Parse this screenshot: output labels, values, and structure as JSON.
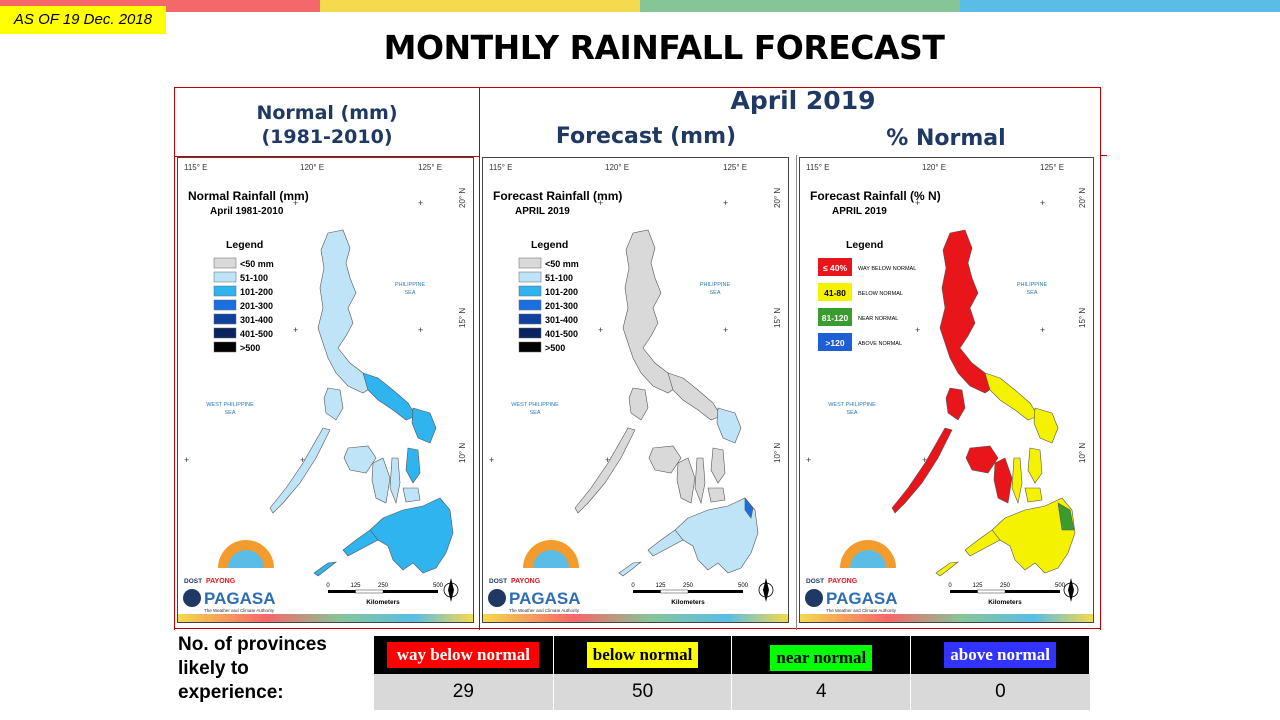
{
  "banner": {
    "as_of": "AS OF 19 Dec. 2018"
  },
  "title": "MONTHLY RAINFALL FORECAST",
  "colors": {
    "bar": [
      "#f4676a",
      "#f5d94e",
      "#86c598",
      "#5bbde6"
    ],
    "header_text": "#1f3864",
    "frame": "#c00000"
  },
  "headers": {
    "normal_line1": "Normal (mm)",
    "normal_line2": "(1981-2010)",
    "month": "April 2019",
    "forecast": "Forecast (mm)",
    "percent": "% Normal"
  },
  "maps": [
    {
      "id": "normal",
      "title": "Normal Rainfall (mm)",
      "subtitle": "April 1981-2010",
      "legend_title": "Legend",
      "legend": [
        {
          "label": "<50 mm",
          "color": "#d9d9d9"
        },
        {
          "label": "51-100",
          "color": "#bfe3f7"
        },
        {
          "label": "101-200",
          "color": "#2fb4ef"
        },
        {
          "label": "201-300",
          "color": "#1a6fe0"
        },
        {
          "label": "301-400",
          "color": "#10419e"
        },
        {
          "label": "401-500",
          "color": "#08235e"
        },
        {
          "label": ">500",
          "color": "#000000"
        }
      ],
      "lon_labels": [
        "115° E",
        "120° E",
        "125° E"
      ],
      "lat_labels": [
        "20° N",
        "15° N",
        "10° N"
      ],
      "sea_labels": [
        "PHILIPPINE SEA",
        "WEST PHILIPPINE SEA"
      ],
      "scale_label": "Kilometers",
      "scale_ticks": [
        "0",
        "125",
        "250",
        "500"
      ],
      "logo": {
        "dost": "DOST",
        "payong": "PAYONG",
        "pagasa": "PAGASA",
        "tagline": "The Weather and Climate Authority"
      }
    },
    {
      "id": "forecast",
      "title": "Forecast Rainfall (mm)",
      "subtitle": "APRIL 2019",
      "legend_title": "Legend",
      "legend": [
        {
          "label": "<50 mm",
          "color": "#d9d9d9"
        },
        {
          "label": "51-100",
          "color": "#bfe3f7"
        },
        {
          "label": "101-200",
          "color": "#2fb4ef"
        },
        {
          "label": "201-300",
          "color": "#1a6fe0"
        },
        {
          "label": "301-400",
          "color": "#10419e"
        },
        {
          "label": "401-500",
          "color": "#08235e"
        },
        {
          "label": ">500",
          "color": "#000000"
        }
      ],
      "lon_labels": [
        "115° E",
        "120° E",
        "125° E"
      ],
      "lat_labels": [
        "20° N",
        "15° N",
        "10° N"
      ],
      "sea_labels": [
        "PHILIPPINE SEA",
        "WEST PHILIPPINE SEA"
      ],
      "scale_label": "Kilometers",
      "scale_ticks": [
        "0",
        "125",
        "250",
        "500"
      ],
      "logo": {
        "dost": "DOST",
        "payong": "PAYONG",
        "pagasa": "PAGASA",
        "tagline": "The Weather and Climate Authority"
      }
    },
    {
      "id": "percent",
      "title": "Forecast Rainfall (% N)",
      "subtitle": "APRIL 2019",
      "legend_title": "Legend",
      "legend": [
        {
          "label": "WAY BELOW NORMAL",
          "swatch": "≤ 40%",
          "color": "#e8151b"
        },
        {
          "label": "BELOW NORMAL",
          "swatch": "41-80",
          "color": "#f5f200"
        },
        {
          "label": "NEAR NORMAL",
          "swatch": "81-120",
          "color": "#3a9c2e"
        },
        {
          "label": "ABOVE NORMAL",
          "swatch": ">120",
          "color": "#1f5fd6"
        }
      ],
      "lon_labels": [
        "115° E",
        "120° E",
        "125° E"
      ],
      "lat_labels": [
        "20° N",
        "15° N",
        "10° N"
      ],
      "sea_labels": [
        "PHILIPPINE SEA",
        "WEST PHILIPPINE SEA"
      ],
      "scale_label": "Kilometers",
      "scale_ticks": [
        "0",
        "125",
        "250",
        "500"
      ],
      "logo": {
        "dost": "DOST",
        "payong": "PAYONG",
        "pagasa": "PAGASA",
        "tagline": "The Weather and Climate Authority"
      }
    }
  ],
  "bottom": {
    "label": "No. of provinces\nlikely  to\nexperience:",
    "categories": [
      {
        "label": "way below normal",
        "bg": "#ff0000",
        "fg": "#ffffff",
        "count": "29"
      },
      {
        "label": "below normal",
        "bg": "#ffff00",
        "fg": "#000000",
        "count": "50"
      },
      {
        "label": "near normal",
        "bg": "#00ff00",
        "fg": "#000000",
        "count": "4"
      },
      {
        "label": "above normal",
        "bg": "#3333ff",
        "fg": "#ffffff",
        "count": "0"
      }
    ]
  }
}
